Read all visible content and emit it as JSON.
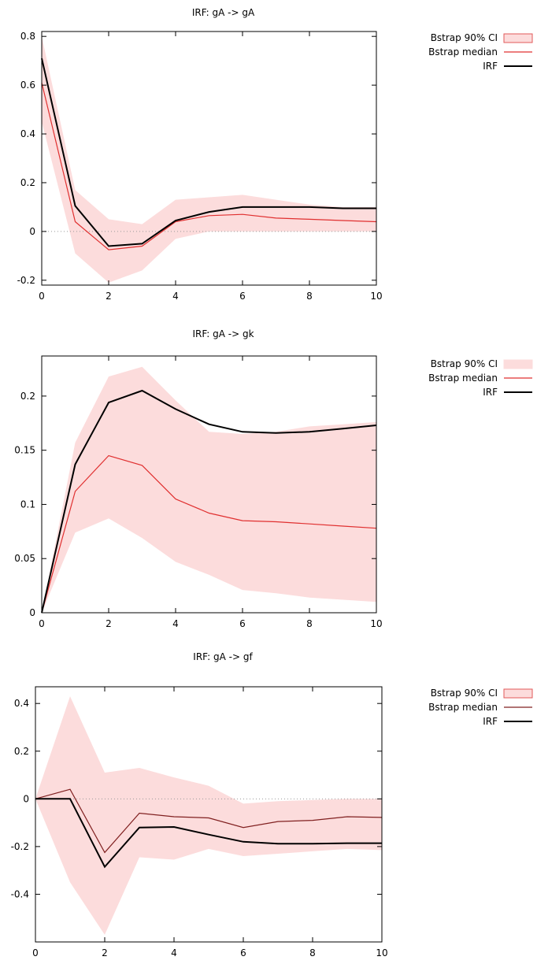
{
  "chart_data": [
    {
      "type": "line",
      "title": "IRF: gA -> gA",
      "x": [
        0,
        1,
        2,
        3,
        4,
        5,
        6,
        7,
        8,
        9,
        10
      ],
      "xticks": [
        0,
        2,
        4,
        6,
        8,
        10
      ],
      "yticks": [
        -0.2,
        0,
        0.2,
        0.4,
        0.6,
        0.8
      ],
      "ytick_labels": [
        "-0.2",
        "0",
        "0.2",
        "0.4",
        "0.6",
        "0.8"
      ],
      "xlim": [
        0,
        10
      ],
      "ylim": [
        -0.22,
        0.82
      ],
      "zero_line": true,
      "grid": false,
      "legend": {
        "position": "outside-right",
        "entries": [
          "Bstrap 90% CI",
          "Bstrap median",
          "IRF"
        ]
      },
      "series": [
        {
          "name": "Bstrap 90% CI",
          "kind": "band",
          "lower": [
            0.45,
            -0.09,
            -0.21,
            -0.16,
            -0.03,
            0.0,
            0.0,
            0.0,
            0.0,
            0.0,
            0.0
          ],
          "upper": [
            0.8,
            0.17,
            0.05,
            0.03,
            0.13,
            0.14,
            0.15,
            0.13,
            0.11,
            0.1,
            0.1
          ]
        },
        {
          "name": "Bstrap median",
          "kind": "line",
          "values": [
            0.61,
            0.04,
            -0.075,
            -0.06,
            0.04,
            0.065,
            0.07,
            0.055,
            0.05,
            0.045,
            0.04
          ]
        },
        {
          "name": "IRF",
          "kind": "line",
          "values": [
            0.71,
            0.105,
            -0.06,
            -0.05,
            0.045,
            0.08,
            0.1,
            0.1,
            0.1,
            0.095,
            0.095
          ]
        }
      ],
      "colors": {
        "band_fill": "#fcdcdc",
        "band_edge": "#e25a5a",
        "median": "#e03030",
        "irf": "#000000"
      }
    },
    {
      "type": "line",
      "title": "IRF: gA -> gk",
      "x": [
        0,
        1,
        2,
        3,
        4,
        5,
        6,
        7,
        8,
        9,
        10
      ],
      "xticks": [
        0,
        2,
        4,
        6,
        8,
        10
      ],
      "yticks": [
        0,
        0.05,
        0.1,
        0.15,
        0.2
      ],
      "ytick_labels": [
        "0",
        "0.05",
        "0.1",
        "0.15",
        "0.2"
      ],
      "xlim": [
        0,
        10
      ],
      "ylim": [
        0,
        0.237
      ],
      "zero_line": false,
      "grid": false,
      "legend": {
        "position": "outside-right",
        "entries": [
          "Bstrap 90% CI",
          "Bstrap median",
          "IRF"
        ]
      },
      "series": [
        {
          "name": "Bstrap 90% CI",
          "kind": "band",
          "lower": [
            0,
            0.074,
            0.087,
            0.069,
            0.047,
            0.035,
            0.021,
            0.018,
            0.014,
            0.012,
            0.01
          ],
          "upper": [
            0,
            0.157,
            0.218,
            0.227,
            0.196,
            0.167,
            0.165,
            0.167,
            0.172,
            0.174,
            0.176
          ]
        },
        {
          "name": "Bstrap median",
          "kind": "line",
          "values": [
            0,
            0.112,
            0.145,
            0.136,
            0.105,
            0.092,
            0.085,
            0.084,
            0.082,
            0.08,
            0.078
          ]
        },
        {
          "name": "IRF",
          "kind": "line",
          "values": [
            0,
            0.137,
            0.194,
            0.205,
            0.188,
            0.174,
            0.167,
            0.166,
            0.167,
            0.17,
            0.173
          ]
        }
      ],
      "colors": {
        "band_fill": "#fcdcdc",
        "band_edge": "#fcdcdc",
        "median": "#e03030",
        "irf": "#000000"
      }
    },
    {
      "type": "line",
      "title": "IRF: gA -> gf",
      "x": [
        0,
        1,
        2,
        3,
        4,
        5,
        6,
        7,
        8,
        9,
        10
      ],
      "xticks": [
        0,
        2,
        4,
        6,
        8,
        10
      ],
      "yticks": [
        -0.4,
        -0.2,
        0,
        0.2,
        0.4
      ],
      "ytick_labels": [
        "-0.4",
        "-0.2",
        "0",
        "0.2",
        "0.4"
      ],
      "xlim": [
        0,
        10
      ],
      "ylim": [
        -0.6,
        0.47
      ],
      "zero_line": true,
      "grid": false,
      "legend": {
        "position": "outside-right",
        "entries": [
          "Bstrap 90% CI",
          "Bstrap median",
          "IRF"
        ]
      },
      "series": [
        {
          "name": "Bstrap 90% CI",
          "kind": "band",
          "lower": [
            0,
            -0.35,
            -0.57,
            -0.245,
            -0.255,
            -0.21,
            -0.24,
            -0.23,
            -0.22,
            -0.21,
            -0.215
          ],
          "upper": [
            0,
            0.43,
            0.11,
            0.13,
            0.09,
            0.055,
            -0.02,
            -0.01,
            -0.005,
            0.0,
            0.0
          ]
        },
        {
          "name": "Bstrap median",
          "kind": "line",
          "values": [
            0,
            0.04,
            -0.225,
            -0.06,
            -0.075,
            -0.08,
            -0.12,
            -0.095,
            -0.09,
            -0.075,
            -0.078
          ]
        },
        {
          "name": "IRF",
          "kind": "line",
          "values": [
            0,
            0.0,
            -0.285,
            -0.12,
            -0.118,
            -0.15,
            -0.18,
            -0.188,
            -0.188,
            -0.186,
            -0.186
          ]
        }
      ],
      "colors": {
        "band_fill": "#fcdcdc",
        "band_edge": "#e25a5a",
        "median": "#802020",
        "irf": "#000000"
      }
    }
  ]
}
